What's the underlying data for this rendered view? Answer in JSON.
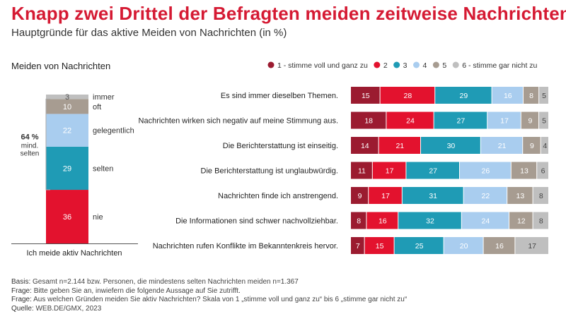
{
  "title": "Knapp zwei Drittel der Befragten meiden zeitweise Nachrichten",
  "subtitle": "Hauptgründe für das aktive Meiden von Nachrichten (in %)",
  "colors": [
    "#9b1b30",
    "#e3122e",
    "#1f9bb5",
    "#a9cdef",
    "#a79c91",
    "#bfbfbf"
  ],
  "chart_data": [
    {
      "type": "bar",
      "stacked": true,
      "orientation": "vertical",
      "title": "Meiden von Nachrichten",
      "xlabel": "Ich meide aktiv Nachrichten",
      "categories": [
        "nie",
        "selten",
        "gelegentlich",
        "oft",
        "immer"
      ],
      "values": [
        36,
        29,
        22,
        10,
        3
      ],
      "bracket_value": "64 %",
      "bracket_text": [
        "mind.",
        "selten"
      ]
    },
    {
      "type": "bar",
      "stacked": true,
      "orientation": "horizontal",
      "legend_position": "top-right",
      "legend": [
        "1 - stimme voll und ganz zu",
        "2",
        "3",
        "4",
        "5",
        "6 - stimme gar nicht zu"
      ],
      "categories": [
        "Es sind immer dieselben Themen.",
        "Nachrichten wirken sich negativ auf meine Stimmung aus.",
        "Die Berichterstattung ist einseitig.",
        "Die Berichterstattung ist unglaubwürdig.",
        "Nachrichten finde ich anstrengend.",
        "Die Informationen sind schwer nachvollziehbar.",
        "Nachrichten rufen Konflikte im Bekanntenkreis hervor."
      ],
      "series": [
        {
          "name": "1 - stimme voll und ganz zu",
          "values": [
            15,
            18,
            14,
            11,
            9,
            8,
            7
          ]
        },
        {
          "name": "2",
          "values": [
            28,
            24,
            21,
            17,
            17,
            16,
            15
          ]
        },
        {
          "name": "3",
          "values": [
            29,
            27,
            30,
            27,
            31,
            32,
            25
          ]
        },
        {
          "name": "4",
          "values": [
            16,
            17,
            21,
            26,
            22,
            24,
            20
          ]
        },
        {
          "name": "5",
          "values": [
            8,
            9,
            9,
            13,
            13,
            12,
            16
          ]
        },
        {
          "name": "6 - stimme gar nicht zu",
          "values": [
            5,
            5,
            4,
            6,
            8,
            8,
            17
          ]
        }
      ]
    }
  ],
  "footer": {
    "basis_label": "Basis:",
    "basis_text": "Gesamt n=2.144 bzw. Personen, die mindestens selten Nachrichten meiden n=1.367",
    "frage1_label": "Frage:",
    "frage1_text": "Bitte geben Sie an, inwiefern die folgende Aussage auf Sie zutrifft.",
    "frage2_label": "Frage:",
    "frage2_text": "Aus welchen Gründen meiden Sie aktiv Nachrichten? Skala von 1 „stimme voll und ganz zu“ bis 6 „stimme gar nicht zu“",
    "quelle_label": "Quelle:",
    "quelle_text": "WEB.DE/GMX, 2023"
  }
}
